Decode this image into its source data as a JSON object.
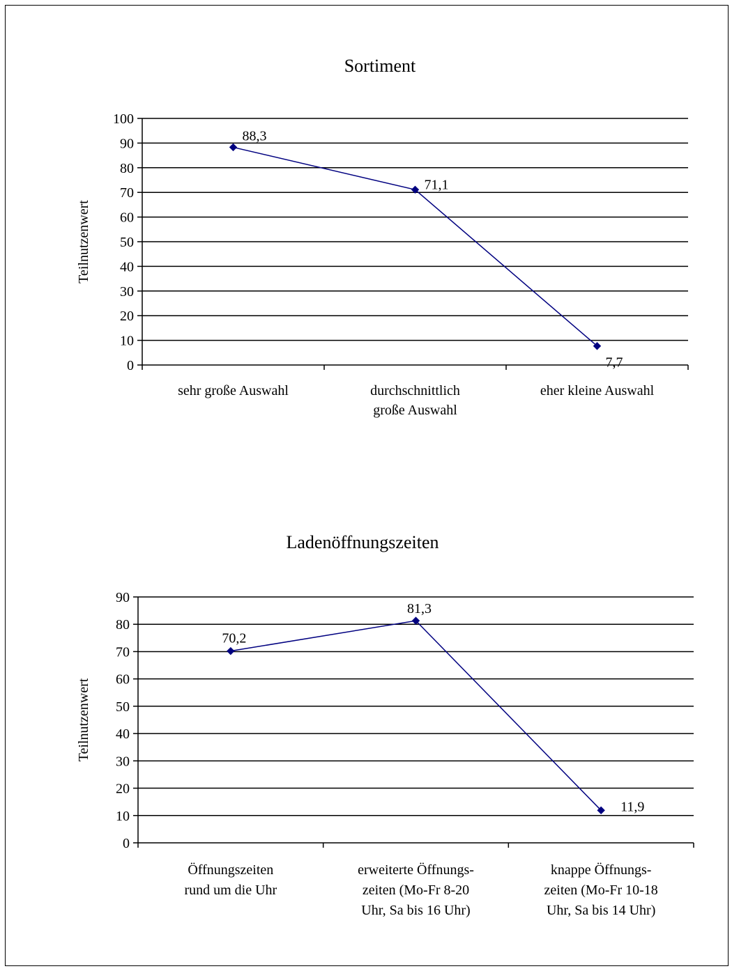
{
  "chart_data": [
    {
      "type": "line",
      "title": "Sortiment",
      "ylabel": "Teilnutzenwert",
      "xlabel": "",
      "ylim": [
        0,
        100
      ],
      "ytick_step": 10,
      "y_ticks": [
        "0",
        "10",
        "20",
        "30",
        "40",
        "50",
        "60",
        "70",
        "80",
        "90",
        "100"
      ],
      "categories": [
        [
          "sehr große Auswahl"
        ],
        [
          "durchschnittlich",
          "große Auswahl"
        ],
        [
          "eher kleine Auswahl"
        ]
      ],
      "values": [
        88.3,
        71.1,
        7.7
      ],
      "data_labels": [
        "88,3",
        "71,1",
        "7,7"
      ],
      "grid": true,
      "line_color": "#000080",
      "marker": "diamond"
    },
    {
      "type": "line",
      "title": "Ladenöffnungszeiten",
      "ylabel": "Teilnutzenwert",
      "xlabel": "",
      "ylim": [
        0,
        90
      ],
      "ytick_step": 10,
      "y_ticks": [
        "0",
        "10",
        "20",
        "30",
        "40",
        "50",
        "60",
        "70",
        "80",
        "90"
      ],
      "categories": [
        [
          "Öffnungszeiten",
          "rund um die Uhr"
        ],
        [
          "erweiterte Öffnungs-",
          "zeiten (Mo-Fr 8-20",
          "Uhr, Sa bis 16 Uhr)"
        ],
        [
          "knappe Öffnungs-",
          "zeiten (Mo-Fr 10-18",
          "Uhr, Sa bis 14 Uhr)"
        ]
      ],
      "values": [
        70.2,
        81.3,
        11.9
      ],
      "data_labels": [
        "70,2",
        "81,3",
        "11,9"
      ],
      "grid": true,
      "line_color": "#000080",
      "marker": "diamond"
    }
  ]
}
